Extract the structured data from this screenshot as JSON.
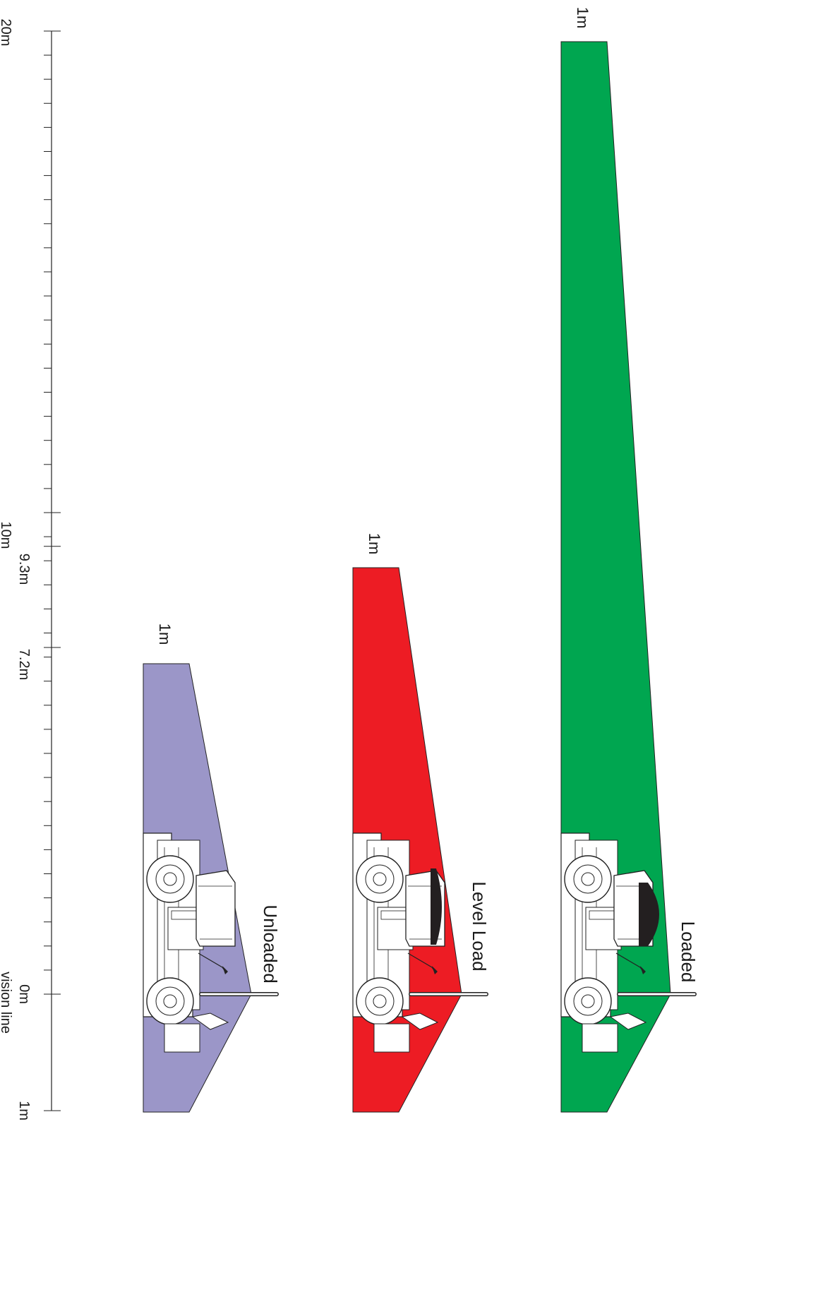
{
  "scale": {
    "labels": {
      "top": "20m",
      "mid": "10m",
      "level_load_mark": "9.3m",
      "unloaded_mark": "7.2m",
      "zero": "0m",
      "zero_caption": "vision line",
      "bottom": "1m"
    }
  },
  "zones": [
    {
      "id": "unloaded",
      "name": "Unloaded",
      "width_label": "1m",
      "distance_m": 7.2,
      "color": "#9b96c8"
    },
    {
      "id": "level-load",
      "name": "Level Load",
      "width_label": "1m",
      "distance_m": 9.3,
      "color": "#ed1c24"
    },
    {
      "id": "loaded",
      "name": "Loaded",
      "width_label": "1m",
      "distance_m": 20,
      "color": "#00a650"
    }
  ]
}
